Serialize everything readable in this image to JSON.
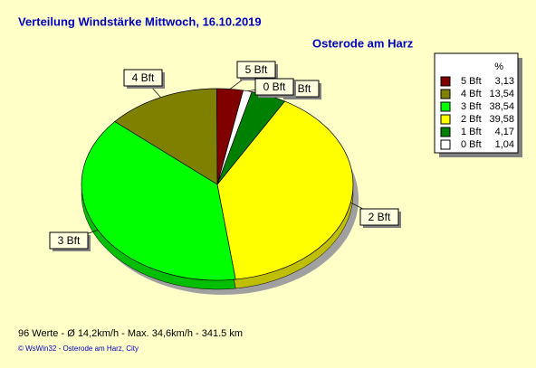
{
  "chart_data": {
    "type": "pie",
    "title": "Verteilung Windstärke  Mittwoch, 16.10.2019",
    "subtitle": "Osterode am Harz",
    "legend_header": "%",
    "categories": [
      "5 Bft",
      "4 Bft",
      "3 Bft",
      "2 Bft",
      "1 Bft",
      "0 Bft"
    ],
    "values": [
      3.13,
      13.54,
      38.54,
      39.58,
      4.17,
      1.04
    ],
    "value_labels": [
      "3,13",
      "13,54",
      "38,54",
      "39,58",
      "4,17",
      "1,04"
    ],
    "colors": [
      "#800000",
      "#808000",
      "#00ff00",
      "#ffff00",
      "#008000",
      "#ffffff"
    ],
    "footer": "96 Werte   -   Ø 14,2km/h  -  Max. 34,6km/h   -   341.5 km",
    "credit": "© WsWin32  -  Osterode am Harz, City"
  }
}
